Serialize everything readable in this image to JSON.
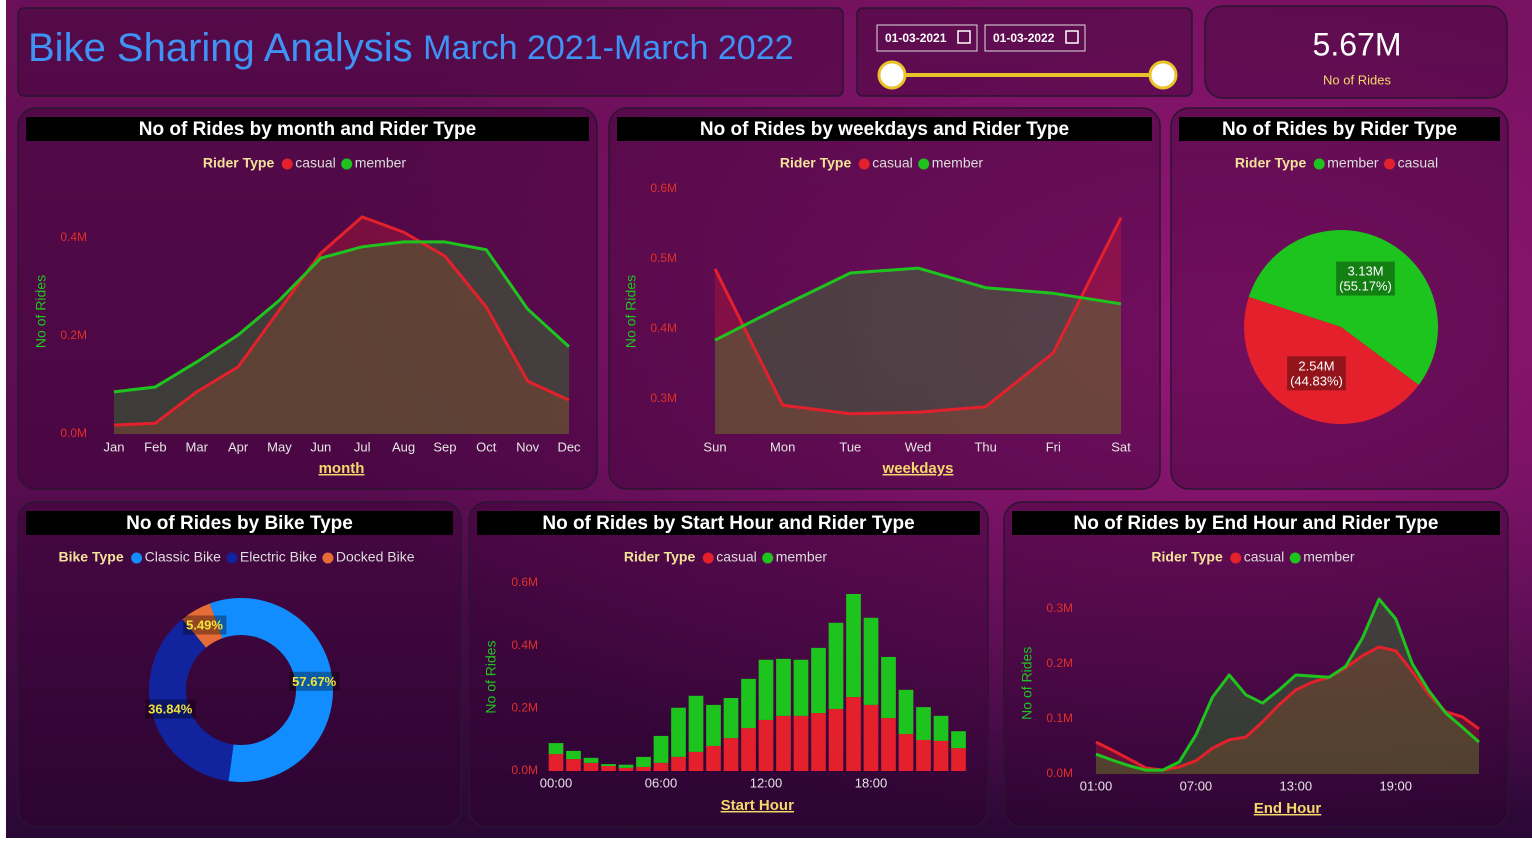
{
  "header": {
    "title": "Bike Sharing Analysis",
    "subtitle": "March 2021-March 2022"
  },
  "date_filter": {
    "start": "01-03-2021",
    "end": "01-03-2022"
  },
  "kpi": {
    "value": "5.67M",
    "label": "No of Rides"
  },
  "chart_data": [
    {
      "type": "line",
      "area": true,
      "title": "No of Rides by month and Rider Type",
      "legend_title": "Rider Type",
      "x_label": "month",
      "y_label": "No of Rides",
      "categories": [
        "Jan",
        "Feb",
        "Mar",
        "Apr",
        "May",
        "Jun",
        "Jul",
        "Aug",
        "Sep",
        "Oct",
        "Nov",
        "Dec"
      ],
      "series": [
        {
          "name": "casual",
          "color": "#e3202b",
          "values": [
            0.018,
            0.022,
            0.086,
            0.137,
            0.253,
            0.369,
            0.443,
            0.412,
            0.363,
            0.259,
            0.108,
            0.069
          ]
        },
        {
          "name": "member",
          "color": "#1ec41e",
          "values": [
            0.086,
            0.096,
            0.147,
            0.202,
            0.273,
            0.359,
            0.382,
            0.392,
            0.392,
            0.376,
            0.255,
            0.178
          ]
        }
      ],
      "ylim": [
        0,
        0.5
      ],
      "yticks": [
        {
          "value": 0,
          "label": "0.0M"
        },
        {
          "value": 0.2,
          "label": "0.2M"
        },
        {
          "value": 0.4,
          "label": "0.4M"
        }
      ]
    },
    {
      "type": "line",
      "area": true,
      "title": "No of Rides by weekdays and Rider Type",
      "legend_title": "Rider Type",
      "x_label": "weekdays",
      "y_label": "No of Rides",
      "categories": [
        "Sun",
        "Mon",
        "Tue",
        "Wed",
        "Thu",
        "Fri",
        "Sat"
      ],
      "series": [
        {
          "name": "casual",
          "color": "#e3202b",
          "values": [
            0.486,
            0.291,
            0.279,
            0.281,
            0.289,
            0.366,
            0.559
          ]
        },
        {
          "name": "member",
          "color": "#1ec41e",
          "values": [
            0.384,
            0.433,
            0.48,
            0.487,
            0.459,
            0.451,
            0.436
          ]
        }
      ],
      "ylim": [
        0.25,
        0.6
      ],
      "yticks": [
        {
          "value": 0.3,
          "label": "0.3M"
        },
        {
          "value": 0.4,
          "label": "0.4M"
        },
        {
          "value": 0.5,
          "label": "0.5M"
        },
        {
          "value": 0.6,
          "label": "0.6M"
        }
      ]
    },
    {
      "type": "pie",
      "title": "No of Rides by Rider Type",
      "legend_title": "Rider Type",
      "categories": [
        "member",
        "casual"
      ],
      "colors": [
        "#1ec41e",
        "#e3202b"
      ],
      "values": [
        3.13,
        2.54
      ],
      "value_labels": [
        "3.13M",
        "2.54M"
      ],
      "percent_labels": [
        "(55.17%)",
        "(44.83%)"
      ]
    },
    {
      "type": "donut",
      "title": "No of Rides by Bike Type",
      "legend_title": "Bike Type",
      "categories": [
        "Classic Bike",
        "Electric Bike",
        "Docked Bike"
      ],
      "colors": [
        "#118dff",
        "#12239e",
        "#e66c37"
      ],
      "values": [
        57.67,
        36.84,
        5.49
      ],
      "value_labels": [
        "57.67%",
        "36.84%",
        "5.49%"
      ]
    },
    {
      "type": "bar",
      "stacked": true,
      "title": "No of Rides by Start Hour and Rider Type",
      "legend_title": "Rider Type",
      "x_label": "Start Hour",
      "y_label": "No of Rides",
      "categories": [
        "00:00",
        null,
        null,
        null,
        null,
        null,
        "06:00",
        null,
        null,
        null,
        null,
        null,
        "12:00",
        null,
        null,
        null,
        null,
        null,
        "18:00",
        null,
        null,
        null,
        null,
        null
      ],
      "series": [
        {
          "name": "casual",
          "color": "#e3202b",
          "values": [
            0.054,
            0.038,
            0.026,
            0.016,
            0.01,
            0.013,
            0.026,
            0.045,
            0.061,
            0.08,
            0.105,
            0.137,
            0.163,
            0.176,
            0.176,
            0.185,
            0.198,
            0.236,
            0.211,
            0.169,
            0.118,
            0.099,
            0.096,
            0.073
          ]
        },
        {
          "name": "member",
          "color": "#1ec41e",
          "values": [
            0.035,
            0.026,
            0.016,
            0.006,
            0.01,
            0.032,
            0.086,
            0.157,
            0.179,
            0.131,
            0.128,
            0.157,
            0.192,
            0.182,
            0.179,
            0.208,
            0.275,
            0.329,
            0.278,
            0.195,
            0.141,
            0.105,
            0.08,
            0.054
          ]
        }
      ],
      "ylim": [
        0,
        0.6
      ],
      "yticks": [
        {
          "value": 0,
          "label": "0.0M"
        },
        {
          "value": 0.2,
          "label": "0.2M"
        },
        {
          "value": 0.4,
          "label": "0.4M"
        },
        {
          "value": 0.6,
          "label": "0.6M"
        }
      ]
    },
    {
      "type": "line",
      "area": true,
      "title": "No of Rides by End Hour and Rider Type",
      "legend_title": "Rider Type",
      "x_label": "End Hour",
      "y_label": "No of Rides",
      "categories": [
        "01:00",
        null,
        null,
        null,
        null,
        null,
        "07:00",
        null,
        null,
        null,
        null,
        null,
        "13:00",
        null,
        null,
        null,
        null,
        null,
        "19:00",
        null,
        null,
        null,
        null,
        null
      ],
      "series": [
        {
          "name": "casual",
          "color": "#e3202b",
          "values": [
            0.058,
            0.043,
            0.027,
            0.011,
            0.007,
            0.013,
            0.024,
            0.047,
            0.062,
            0.067,
            0.095,
            0.126,
            0.153,
            0.167,
            0.176,
            0.193,
            0.215,
            0.231,
            0.224,
            0.186,
            0.144,
            0.113,
            0.104,
            0.082
          ]
        },
        {
          "name": "member",
          "color": "#1ec41e",
          "values": [
            0.036,
            0.025,
            0.015,
            0.007,
            0.007,
            0.022,
            0.071,
            0.14,
            0.18,
            0.144,
            0.129,
            0.153,
            0.18,
            0.178,
            0.176,
            0.196,
            0.247,
            0.318,
            0.282,
            0.2,
            0.151,
            0.111,
            0.085,
            0.058
          ]
        }
      ],
      "ylim": [
        0,
        0.33
      ],
      "yticks": [
        {
          "value": 0,
          "label": "0.0M"
        },
        {
          "value": 0.1,
          "label": "0.1M"
        },
        {
          "value": 0.2,
          "label": "0.2M"
        },
        {
          "value": 0.3,
          "label": "0.3M"
        }
      ]
    }
  ]
}
